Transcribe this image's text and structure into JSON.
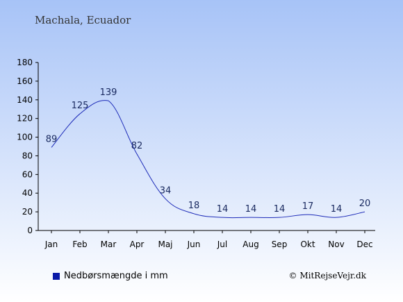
{
  "location_title": "Machala, Ecuador",
  "legend": {
    "label": "Nedbørsmængde i mm",
    "color": "#0a1aa8"
  },
  "credit": "© MitRejseVejr.dk",
  "colors": {
    "sky_top": "#a7c3f7",
    "sky_bottom": "#ffffff",
    "line": "#1c2ab8"
  },
  "chart_data": {
    "type": "line",
    "categories": [
      "Jan",
      "Feb",
      "Mar",
      "Apr",
      "Maj",
      "Jun",
      "Jul",
      "Aug",
      "Sep",
      "Okt",
      "Nov",
      "Dec"
    ],
    "series": [
      {
        "name": "Nedbørsmængde i mm",
        "values": [
          89,
          125,
          139,
          82,
          34,
          18,
          14,
          14,
          14,
          17,
          14,
          20
        ]
      }
    ],
    "data_labels": [
      "89",
      "125",
      "139",
      "82",
      "34",
      "18",
      "14",
      "14",
      "14",
      "17",
      "14",
      "20"
    ],
    "yticks": [
      "0",
      "20",
      "40",
      "60",
      "80",
      "100",
      "120",
      "140",
      "160",
      "180"
    ],
    "ylim": [
      0,
      180
    ],
    "grid": false,
    "legend_position": "bottom-left"
  }
}
